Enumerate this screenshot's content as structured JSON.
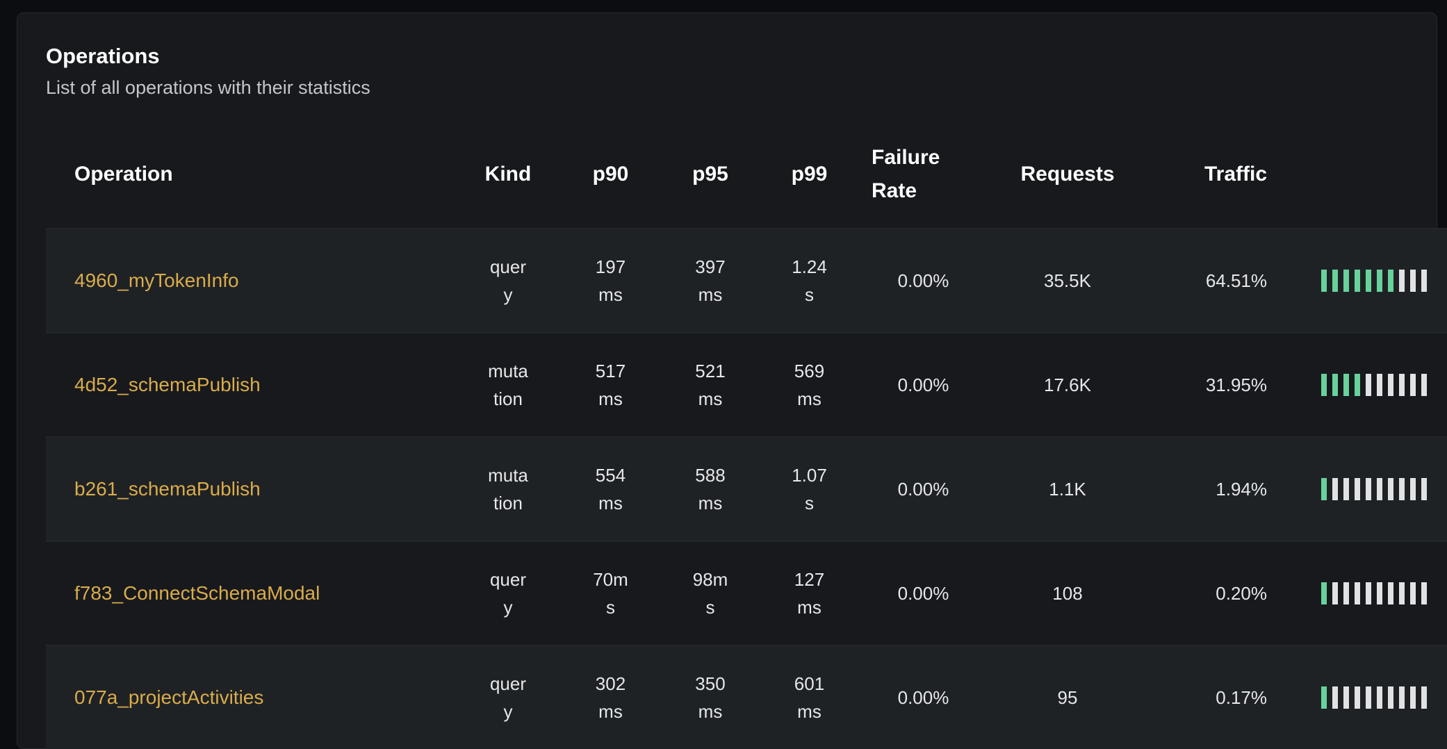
{
  "header": {
    "title": "Operations",
    "subtitle": "List of all operations with their statistics"
  },
  "columns": [
    "Operation",
    "Kind",
    "p90",
    "p95",
    "p99",
    "Failure Rate",
    "Requests",
    "Traffic"
  ],
  "colors": {
    "operation_link": "#d9ac4b",
    "traffic_filled": "#68d29c",
    "traffic_empty": "#e1e2e4"
  },
  "rows": [
    {
      "operation": "4960_myTokenInfo",
      "kind": "query",
      "p90": "197 ms",
      "p95": "397 ms",
      "p99": "1.24 s",
      "failure_rate": "0.00%",
      "requests": "35.5K",
      "traffic": "64.51%",
      "traffic_bars_filled": 7
    },
    {
      "operation": "4d52_schemaPublish",
      "kind": "mutation",
      "p90": "517 ms",
      "p95": "521 ms",
      "p99": "569 ms",
      "failure_rate": "0.00%",
      "requests": "17.6K",
      "traffic": "31.95%",
      "traffic_bars_filled": 4
    },
    {
      "operation": "b261_schemaPublish",
      "kind": "mutation",
      "p90": "554 ms",
      "p95": "588 ms",
      "p99": "1.07 s",
      "failure_rate": "0.00%",
      "requests": "1.1K",
      "traffic": "1.94%",
      "traffic_bars_filled": 1
    },
    {
      "operation": "f783_ConnectSchemaModal",
      "kind": "query",
      "p90": "70ms",
      "p95": "98ms",
      "p99": "127 ms",
      "failure_rate": "0.00%",
      "requests": "108",
      "traffic": "0.20%",
      "traffic_bars_filled": 1
    },
    {
      "operation": "077a_projectActivities",
      "kind": "query",
      "p90": "302 ms",
      "p95": "350 ms",
      "p99": "601 ms",
      "failure_rate": "0.00%",
      "requests": "95",
      "traffic": "0.17%",
      "traffic_bars_filled": 1
    }
  ]
}
